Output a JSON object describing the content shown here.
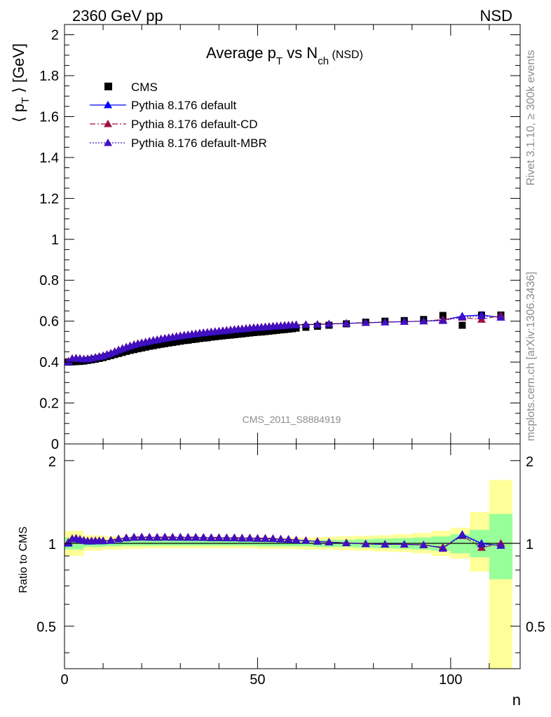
{
  "header": {
    "energy": "2360 GeV pp",
    "process": "NSD"
  },
  "plot_title": {
    "main": "Average p",
    "sub1": "T",
    "mid": " vs N",
    "sub2": "ch",
    "tail": " (NSD)"
  },
  "side_texts": {
    "rivet": "Rivet 3.1.10, ≥ 300k events",
    "mcplots": "mcplots.cern.ch [arXiv:1306.3436]"
  },
  "watermark": "CMS_2011_S8884919",
  "colors": {
    "cms": "#000000",
    "default": "#0000ff",
    "cd": "#a01040",
    "mbr": "#4010c0",
    "band_yellow": "#ffff99",
    "band_green": "#99ff99"
  },
  "chart_data": [
    {
      "type": "scatter",
      "ylabel": "⟨ p_T ⟩ [GeV]",
      "ylim": [
        0,
        2.05
      ],
      "xlim": [
        0,
        118
      ],
      "yticks": [
        "0",
        "0.2",
        "0.4",
        "0.6",
        "0.8",
        "1",
        "1.2",
        "1.4",
        "1.6",
        "1.8",
        "2"
      ],
      "legend_position": "top-left",
      "series": [
        {
          "name": "CMS",
          "marker": "square",
          "line": "none",
          "x": [
            1,
            2,
            3,
            4,
            5,
            6,
            7,
            8,
            9,
            10,
            11,
            12,
            13,
            14,
            15,
            16,
            17,
            18,
            19,
            20,
            21,
            22,
            23,
            24,
            25,
            26,
            27,
            28,
            29,
            30,
            31,
            32,
            33,
            34,
            35,
            36,
            37,
            38,
            39,
            40,
            41,
            42,
            43,
            44,
            45,
            46,
            47,
            48,
            49,
            50,
            51,
            52,
            53,
            54,
            55,
            56,
            57,
            58,
            59,
            60,
            62.5,
            65.5,
            68.5,
            73,
            78,
            83,
            88,
            93,
            98,
            103,
            108,
            113
          ],
          "y": [
            0.4,
            0.401,
            0.402,
            0.403,
            0.405,
            0.408,
            0.411,
            0.414,
            0.418,
            0.422,
            0.427,
            0.432,
            0.437,
            0.442,
            0.447,
            0.452,
            0.457,
            0.461,
            0.465,
            0.469,
            0.473,
            0.477,
            0.48,
            0.484,
            0.487,
            0.49,
            0.493,
            0.496,
            0.499,
            0.502,
            0.505,
            0.507,
            0.51,
            0.512,
            0.515,
            0.517,
            0.519,
            0.522,
            0.524,
            0.526,
            0.528,
            0.53,
            0.532,
            0.534,
            0.536,
            0.538,
            0.54,
            0.542,
            0.544,
            0.546,
            0.547,
            0.549,
            0.551,
            0.553,
            0.555,
            0.557,
            0.559,
            0.561,
            0.563,
            0.566,
            0.57,
            0.575,
            0.58,
            0.587,
            0.595,
            0.6,
            0.603,
            0.608,
            0.628,
            0.58,
            0.63,
            0.63
          ]
        },
        {
          "name": "Pythia 8.176 default",
          "marker": "triangle",
          "line": "solid",
          "x": [
            1,
            2,
            3,
            4,
            5,
            6,
            7,
            8,
            9,
            10,
            11,
            12,
            13,
            14,
            15,
            16,
            17,
            18,
            19,
            20,
            21,
            22,
            23,
            24,
            25,
            26,
            27,
            28,
            29,
            30,
            31,
            32,
            33,
            34,
            35,
            36,
            37,
            38,
            39,
            40,
            41,
            42,
            43,
            44,
            45,
            46,
            47,
            48,
            49,
            50,
            51,
            52,
            53,
            54,
            55,
            56,
            57,
            58,
            59,
            60,
            62.5,
            65.5,
            68.5,
            73,
            78,
            83,
            88,
            93,
            98,
            103,
            108,
            113
          ],
          "y": [
            0.4,
            0.415,
            0.418,
            0.416,
            0.414,
            0.415,
            0.418,
            0.422,
            0.426,
            0.43,
            0.436,
            0.442,
            0.45,
            0.458,
            0.465,
            0.472,
            0.478,
            0.484,
            0.489,
            0.493,
            0.497,
            0.501,
            0.505,
            0.508,
            0.512,
            0.515,
            0.518,
            0.521,
            0.524,
            0.527,
            0.53,
            0.532,
            0.535,
            0.537,
            0.54,
            0.542,
            0.544,
            0.546,
            0.548,
            0.55,
            0.552,
            0.554,
            0.556,
            0.558,
            0.56,
            0.561,
            0.563,
            0.565,
            0.567,
            0.568,
            0.569,
            0.571,
            0.572,
            0.574,
            0.575,
            0.576,
            0.578,
            0.579,
            0.58,
            0.581,
            0.583,
            0.584,
            0.586,
            0.589,
            0.592,
            0.595,
            0.598,
            0.6,
            0.605,
            0.625,
            0.63,
            0.618
          ]
        },
        {
          "name": "Pythia 8.176 default-CD",
          "marker": "triangle",
          "line": "dashdot",
          "x": [
            1,
            2,
            3,
            4,
            5,
            6,
            7,
            8,
            9,
            10,
            11,
            12,
            13,
            14,
            15,
            16,
            17,
            18,
            19,
            20,
            21,
            22,
            23,
            24,
            25,
            26,
            27,
            28,
            29,
            30,
            31,
            32,
            33,
            34,
            35,
            36,
            37,
            38,
            39,
            40,
            41,
            42,
            43,
            44,
            45,
            46,
            47,
            48,
            49,
            50,
            51,
            52,
            53,
            54,
            55,
            56,
            57,
            58,
            59,
            60,
            62.5,
            65.5,
            68.5,
            73,
            78,
            83,
            88,
            93,
            98,
            103,
            108,
            113
          ],
          "y": [
            0.405,
            0.418,
            0.42,
            0.418,
            0.416,
            0.417,
            0.42,
            0.424,
            0.428,
            0.432,
            0.438,
            0.444,
            0.452,
            0.46,
            0.467,
            0.474,
            0.48,
            0.486,
            0.491,
            0.495,
            0.499,
            0.503,
            0.507,
            0.51,
            0.514,
            0.517,
            0.52,
            0.523,
            0.526,
            0.529,
            0.532,
            0.534,
            0.537,
            0.539,
            0.542,
            0.544,
            0.546,
            0.548,
            0.55,
            0.552,
            0.554,
            0.556,
            0.558,
            0.56,
            0.562,
            0.563,
            0.565,
            0.567,
            0.569,
            0.57,
            0.571,
            0.573,
            0.574,
            0.576,
            0.577,
            0.578,
            0.58,
            0.581,
            0.582,
            0.583,
            0.584,
            0.585,
            0.587,
            0.59,
            0.593,
            0.596,
            0.598,
            0.6,
            0.608,
            0.618,
            0.608,
            0.628
          ]
        },
        {
          "name": "Pythia 8.176 default-MBR",
          "marker": "triangle",
          "line": "dotted",
          "x": [
            1,
            2,
            3,
            4,
            5,
            6,
            7,
            8,
            9,
            10,
            11,
            12,
            13,
            14,
            15,
            16,
            17,
            18,
            19,
            20,
            21,
            22,
            23,
            24,
            25,
            26,
            27,
            28,
            29,
            30,
            31,
            32,
            33,
            34,
            35,
            36,
            37,
            38,
            39,
            40,
            41,
            42,
            43,
            44,
            45,
            46,
            47,
            48,
            49,
            50,
            51,
            52,
            53,
            54,
            55,
            56,
            57,
            58,
            59,
            60,
            62.5,
            65.5,
            68.5,
            73,
            78,
            83,
            88,
            93,
            98,
            103,
            108,
            113
          ],
          "y": [
            0.402,
            0.416,
            0.419,
            0.417,
            0.415,
            0.416,
            0.419,
            0.423,
            0.427,
            0.431,
            0.437,
            0.443,
            0.451,
            0.459,
            0.466,
            0.473,
            0.479,
            0.485,
            0.49,
            0.494,
            0.498,
            0.502,
            0.506,
            0.509,
            0.513,
            0.516,
            0.519,
            0.522,
            0.525,
            0.528,
            0.531,
            0.533,
            0.536,
            0.538,
            0.541,
            0.543,
            0.545,
            0.547,
            0.549,
            0.551,
            0.553,
            0.555,
            0.557,
            0.559,
            0.561,
            0.562,
            0.564,
            0.566,
            0.568,
            0.569,
            0.57,
            0.572,
            0.573,
            0.575,
            0.576,
            0.577,
            0.579,
            0.58,
            0.581,
            0.582,
            0.583,
            0.584,
            0.586,
            0.589,
            0.592,
            0.595,
            0.598,
            0.6,
            0.602,
            0.62,
            0.625,
            0.62
          ]
        }
      ]
    },
    {
      "type": "scatter",
      "ylabel": "Ratio to CMS",
      "xlabel": "n",
      "ylim": [
        0.35,
        2.3
      ],
      "xlim": [
        0,
        118
      ],
      "yticks": [
        "0.5",
        "1",
        "2"
      ],
      "xticks": [
        "0",
        "50",
        "100"
      ],
      "bands": {
        "bin_edges": [
          0,
          5,
          10,
          15,
          20,
          25,
          30,
          35,
          40,
          45,
          50,
          55,
          60,
          65,
          70,
          75,
          80,
          85,
          90,
          95,
          100,
          105,
          110,
          116
        ],
        "yellow_low": [
          0.9,
          0.94,
          0.95,
          0.955,
          0.96,
          0.96,
          0.96,
          0.96,
          0.96,
          0.96,
          0.955,
          0.955,
          0.95,
          0.95,
          0.945,
          0.94,
          0.935,
          0.93,
          0.92,
          0.9,
          0.88,
          0.79,
          0.33,
          0.33
        ],
        "yellow_high": [
          1.11,
          1.07,
          1.06,
          1.05,
          1.05,
          1.05,
          1.05,
          1.05,
          1.05,
          1.05,
          1.05,
          1.05,
          1.05,
          1.055,
          1.06,
          1.065,
          1.07,
          1.08,
          1.09,
          1.11,
          1.14,
          1.3,
          1.7,
          2.02
        ],
        "green_low": [
          0.95,
          0.97,
          0.975,
          0.98,
          0.98,
          0.98,
          0.98,
          0.98,
          0.98,
          0.98,
          0.975,
          0.975,
          0.975,
          0.97,
          0.97,
          0.965,
          0.96,
          0.955,
          0.95,
          0.94,
          0.92,
          0.89,
          0.74,
          0.5
        ],
        "green_high": [
          1.05,
          1.035,
          1.03,
          1.025,
          1.025,
          1.025,
          1.025,
          1.025,
          1.025,
          1.025,
          1.025,
          1.025,
          1.025,
          1.03,
          1.03,
          1.035,
          1.04,
          1.045,
          1.05,
          1.06,
          1.08,
          1.12,
          1.28,
          1.58
        ]
      },
      "series": [
        {
          "name": "Pythia 8.176 default",
          "marker": "triangle",
          "line": "solid",
          "x": [
            1,
            2,
            3,
            4,
            5,
            6,
            7,
            8,
            9,
            10,
            12,
            14,
            16,
            18,
            20,
            22,
            24,
            26,
            28,
            30,
            32,
            34,
            36,
            38,
            40,
            42,
            44,
            46,
            48,
            50,
            52,
            54,
            56,
            58,
            60,
            62.5,
            65.5,
            68.5,
            73,
            78,
            83,
            88,
            93,
            98,
            103,
            108,
            113
          ],
          "y": [
            1.0,
            1.035,
            1.04,
            1.032,
            1.022,
            1.017,
            1.017,
            1.019,
            1.019,
            1.019,
            1.023,
            1.036,
            1.044,
            1.05,
            1.051,
            1.05,
            1.049,
            1.051,
            1.05,
            1.05,
            1.049,
            1.049,
            1.048,
            1.046,
            1.046,
            1.045,
            1.045,
            1.042,
            1.043,
            1.04,
            1.04,
            1.038,
            1.034,
            1.032,
            1.027,
            1.023,
            1.016,
            1.01,
            1.003,
            0.995,
            0.992,
            0.992,
            0.987,
            0.963,
            1.078,
            1.0,
            0.981
          ]
        },
        {
          "name": "Pythia 8.176 default-CD",
          "marker": "triangle",
          "line": "dashdot",
          "x": [
            1,
            2,
            3,
            4,
            5,
            6,
            7,
            8,
            9,
            10,
            12,
            14,
            16,
            18,
            20,
            22,
            24,
            26,
            28,
            30,
            32,
            34,
            36,
            38,
            40,
            42,
            44,
            46,
            48,
            50,
            52,
            54,
            56,
            58,
            60,
            62.5,
            65.5,
            68.5,
            73,
            78,
            83,
            88,
            93,
            98,
            103,
            108,
            113
          ],
          "y": [
            1.012,
            1.042,
            1.045,
            1.037,
            1.027,
            1.022,
            1.022,
            1.024,
            1.024,
            1.024,
            1.028,
            1.041,
            1.049,
            1.055,
            1.056,
            1.055,
            1.054,
            1.056,
            1.055,
            1.055,
            1.054,
            1.054,
            1.053,
            1.051,
            1.051,
            1.05,
            1.05,
            1.047,
            1.048,
            1.045,
            1.045,
            1.043,
            1.038,
            1.036,
            1.03,
            1.025,
            1.017,
            1.012,
            1.005,
            0.997,
            0.993,
            0.992,
            0.987,
            0.968,
            1.065,
            0.965,
            1.0
          ]
        },
        {
          "name": "Pythia 8.176 default-MBR",
          "marker": "triangle",
          "line": "dotted",
          "x": [
            1,
            2,
            3,
            4,
            5,
            6,
            7,
            8,
            9,
            10,
            12,
            14,
            16,
            18,
            20,
            22,
            24,
            26,
            28,
            30,
            32,
            34,
            36,
            38,
            40,
            42,
            44,
            46,
            48,
            50,
            52,
            54,
            56,
            58,
            60,
            62.5,
            65.5,
            68.5,
            73,
            78,
            83,
            88,
            93,
            98,
            103,
            108,
            113
          ],
          "y": [
            1.005,
            1.037,
            1.042,
            1.034,
            1.025,
            1.019,
            1.019,
            1.021,
            1.021,
            1.021,
            1.025,
            1.038,
            1.046,
            1.052,
            1.053,
            1.052,
            1.051,
            1.053,
            1.052,
            1.052,
            1.051,
            1.051,
            1.05,
            1.048,
            1.048,
            1.047,
            1.047,
            1.044,
            1.045,
            1.042,
            1.042,
            1.04,
            1.036,
            1.034,
            1.028,
            1.023,
            1.016,
            1.01,
            1.003,
            0.995,
            0.992,
            0.992,
            0.987,
            0.958,
            1.069,
            0.992,
            0.984
          ]
        }
      ]
    }
  ]
}
